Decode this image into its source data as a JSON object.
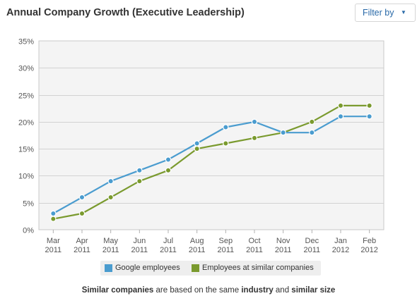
{
  "header": {
    "title": "Annual Company Growth (Executive Leadership)",
    "filter_label": "Filter by",
    "filter_icon": "caret-down"
  },
  "chart_data": {
    "type": "line",
    "x": [
      "Mar 2011",
      "Apr 2011",
      "May 2011",
      "Jun 2011",
      "Jul 2011",
      "Aug 2011",
      "Sep 2011",
      "Oct 2011",
      "Nov 2011",
      "Dec 2011",
      "Jan 2012",
      "Feb 2012"
    ],
    "x_tick_labels": [
      [
        "Mar",
        "2011"
      ],
      [
        "Apr",
        "2011"
      ],
      [
        "May",
        "2011"
      ],
      [
        "Jun",
        "2011"
      ],
      [
        "Jul",
        "2011"
      ],
      [
        "Aug",
        "2011"
      ],
      [
        "Sep",
        "2011"
      ],
      [
        "Oct",
        "2011"
      ],
      [
        "Nov",
        "2011"
      ],
      [
        "Dec",
        "2011"
      ],
      [
        "Jan",
        "2012"
      ],
      [
        "Feb",
        "2012"
      ]
    ],
    "series": [
      {
        "name": "Google employees",
        "color": "#4a9ccf",
        "values": [
          3,
          6,
          9,
          11,
          13,
          16,
          19,
          20,
          18,
          18,
          21,
          21
        ]
      },
      {
        "name": "Employees at similar companies",
        "color": "#7a9a2e",
        "values": [
          2,
          3,
          6,
          9,
          11,
          15,
          16,
          17,
          18,
          20,
          23,
          23
        ]
      }
    ],
    "ylim": [
      0,
      35
    ],
    "y_ticks": [
      0,
      5,
      10,
      15,
      20,
      25,
      30,
      35
    ],
    "y_tick_labels": [
      "0%",
      "5%",
      "10%",
      "15%",
      "20%",
      "25%",
      "30%",
      "35%"
    ],
    "grid": true,
    "legend_position": "bottom",
    "plot_background": "#f4f4f4"
  },
  "footnote": {
    "part1": "Similar companies",
    "part2": " are based on the same ",
    "part3": "industry",
    "part4": " and ",
    "part5": "similar size"
  }
}
